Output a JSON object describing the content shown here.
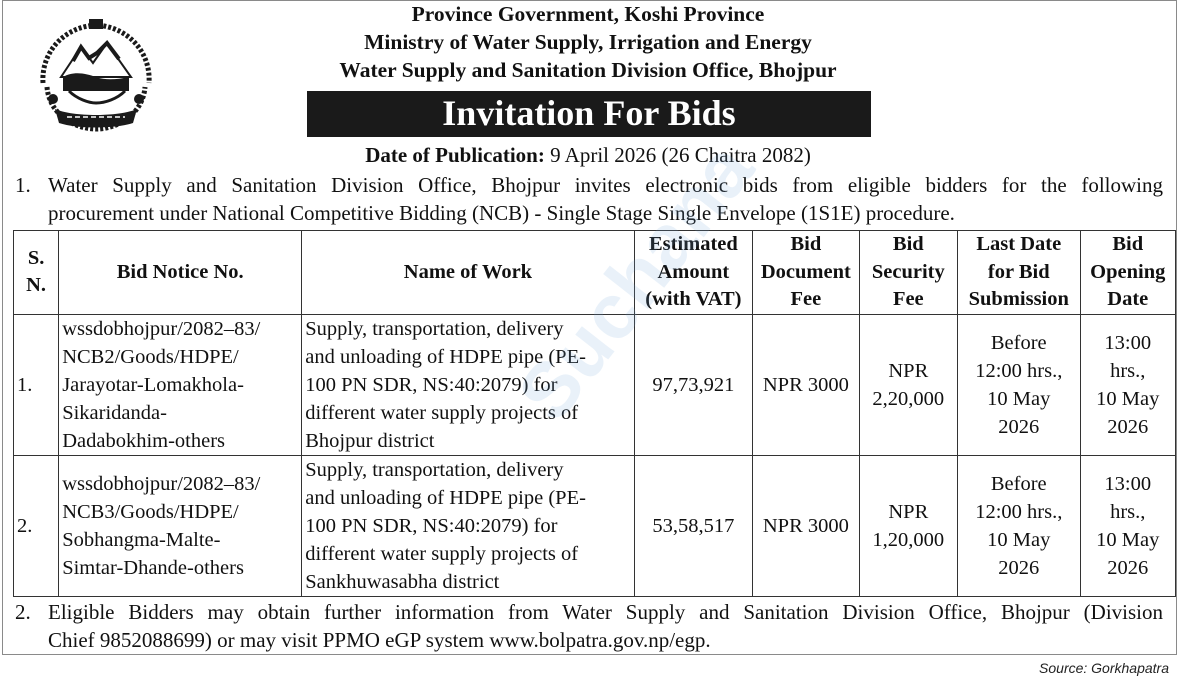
{
  "header": {
    "line1": "Province Government, Koshi Province",
    "line2": "Ministry of Water Supply, Irrigation and Energy",
    "line3": "Water Supply and Sanitation Division Office, Bhojpur"
  },
  "title": "Invitation For Bids",
  "publication": {
    "label": "Date of Publication:",
    "value": "9 April 2026 (26 Chaitra 2082)"
  },
  "para1": {
    "number": "1.",
    "line1": "Water Supply and Sanitation Division Office, Bhojpur invites electronic bids from eligible bidders for the following",
    "line2": "procurement under National Competitive Bidding (NCB) - Single Stage Single Envelope (1S1E) procedure."
  },
  "table": {
    "headers": {
      "sn": [
        "S.",
        "N."
      ],
      "notice": "Bid Notice No.",
      "work": "Name of Work",
      "amount": [
        "Estimated",
        "Amount",
        "(with VAT)"
      ],
      "doc_fee": [
        "Bid",
        "Document",
        "Fee"
      ],
      "security": [
        "Bid",
        "Security",
        "Fee"
      ],
      "last_date": [
        "Last Date",
        "for Bid",
        "Submission"
      ],
      "opening": [
        "Bid",
        "Opening",
        "Date"
      ]
    },
    "rows": [
      {
        "sn": "1.",
        "notice": [
          "wssdobhojpur/2082–83/",
          "NCB2/Goods/HDPE/",
          "Jarayotar-Lomakhola-",
          "Sikaridanda-",
          "Dadabokhim-others"
        ],
        "work": [
          "Supply, transportation, delivery",
          "and unloading of HDPE pipe (PE-",
          "100 PN SDR, NS:40:2079) for",
          "different water supply projects of",
          "Bhojpur district"
        ],
        "amount": "97,73,921",
        "doc_fee": "NPR 3000",
        "security": [
          "NPR",
          "2,20,000"
        ],
        "last_date": [
          "Before",
          "12:00 hrs.,",
          "10 May",
          "2026"
        ],
        "opening": [
          "13:00",
          "hrs.,",
          "10 May",
          "2026"
        ]
      },
      {
        "sn": "2.",
        "notice": [
          "wssdobhojpur/2082–83/",
          "NCB3/Goods/HDPE/",
          "Sobhangma-Malte-",
          "Simtar-Dhande-others"
        ],
        "work": [
          "Supply, transportation, delivery",
          "and unloading of HDPE pipe (PE-",
          "100 PN SDR, NS:40:2079) for",
          "different water supply projects of",
          "Sankhuwasabha district"
        ],
        "amount": "53,58,517",
        "doc_fee": "NPR 3000",
        "security": [
          "NPR",
          "1,20,000"
        ],
        "last_date": [
          "Before",
          "12:00 hrs.,",
          "10 May",
          "2026"
        ],
        "opening": [
          "13:00",
          "hrs.,",
          "10 May",
          "2026"
        ]
      }
    ]
  },
  "para2": {
    "number": "2.",
    "line1": "Eligible Bidders may obtain further information from Water Supply and Sanitation Division Office, Bhojpur (Division",
    "line2": "Chief 9852088699) or may visit PPMO eGP system www.bolpatra.gov.np/egp."
  },
  "source": "Source: Gorkhapatra",
  "watermark": "Suchana",
  "colors": {
    "banner_bg": "#1a1a1a",
    "banner_text": "#ffffff",
    "watermark": "#78aadc"
  }
}
